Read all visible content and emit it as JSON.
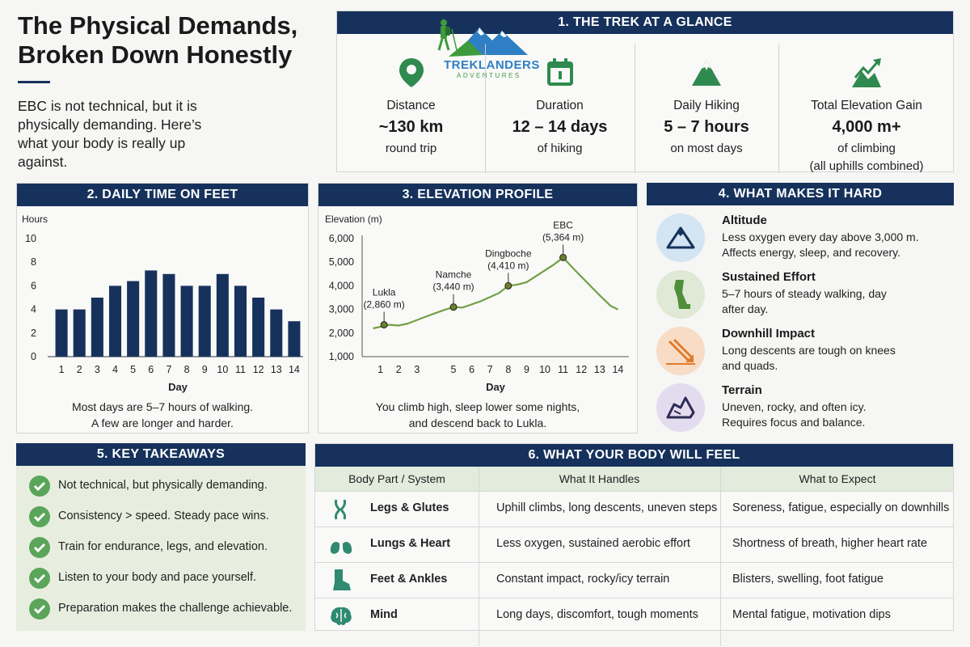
{
  "header": {
    "title_line1": "The Physical Demands,",
    "title_line2": "Broken Down Honestly",
    "intro": "EBC is not technical, but it is physically demanding. Here’s what your body is really up against."
  },
  "logo": {
    "name": "TREKLANDERS",
    "tagline": "ADVENTURES",
    "icon": "hiker-mountain-logo"
  },
  "glance": {
    "title": "1. THE TREK AT A GLANCE",
    "items": [
      {
        "icon": "map-pin-icon",
        "label": "Distance",
        "value": "~130 km",
        "sub": "round trip"
      },
      {
        "icon": "calendar-icon",
        "label": "Duration",
        "value": "12 – 14 days",
        "sub": "of hiking"
      },
      {
        "icon": "mountain-icon",
        "label": "Daily Hiking",
        "value": "5 – 7 hours",
        "sub": "on most days"
      },
      {
        "icon": "elevation-arrow-icon",
        "label": "Total Elevation Gain",
        "value": "4,000 m+",
        "sub": "of climbing",
        "sub2": "(all uphills combined)"
      }
    ]
  },
  "time_on_feet": {
    "title": "2. DAILY TIME ON FEET",
    "caption_line1": "Most days are 5–7 hours of walking.",
    "caption_line2": "A few are longer and harder."
  },
  "elevation": {
    "title": "3. ELEVATION PROFILE",
    "caption_line1": "You climb high, sleep lower some nights,",
    "caption_line2": "and descend back to Lukla."
  },
  "chart_data": [
    {
      "type": "bar",
      "ylabel": "Hours",
      "xlabel": "Day",
      "ylim": [
        0,
        10
      ],
      "yticks": [
        0,
        2,
        4,
        6,
        8,
        10
      ],
      "categories": [
        "1",
        "2",
        "3",
        "4",
        "5",
        "6",
        "7",
        "8",
        "9",
        "10",
        "11",
        "12",
        "13",
        "14"
      ],
      "values": [
        4,
        4,
        5,
        6,
        6.4,
        7.3,
        7,
        6,
        6,
        7,
        6,
        5,
        4,
        3
      ],
      "bar_color": "#16325c"
    },
    {
      "type": "line",
      "ylabel": "Elevation (m)",
      "xlabel": "Day",
      "ylim": [
        1000,
        6000
      ],
      "yticks": [
        1000,
        2000,
        3000,
        4000,
        5000,
        6000
      ],
      "ytick_labels": [
        "1,000",
        "2,000",
        "3,000",
        "4,000",
        "5,000",
        "6,000"
      ],
      "xticks": [
        1,
        2,
        3,
        5,
        6,
        7,
        8,
        9,
        10,
        11,
        12,
        13,
        14
      ],
      "xtick_labels": [
        "1",
        "2",
        "3",
        "5",
        "6",
        "7",
        "8",
        "9",
        "10",
        "11",
        "12",
        "13",
        "14"
      ],
      "x": [
        0.6,
        1.5,
        2,
        2.5,
        3.5,
        4.5,
        5,
        5.5,
        6.5,
        7.5,
        8,
        8.5,
        9,
        9.5,
        10.5,
        11,
        11.6,
        12.3,
        13,
        13.6,
        14
      ],
      "y": [
        2200,
        2350,
        2320,
        2400,
        2700,
        2980,
        3100,
        3080,
        3350,
        3700,
        4000,
        4050,
        4150,
        4400,
        4900,
        5200,
        4700,
        4150,
        3600,
        3150,
        3000
      ],
      "line_color": "#6fa043",
      "annotations": [
        {
          "name": "Lukla",
          "elev": "(2,860 m)",
          "x": 1.2,
          "y": 2350
        },
        {
          "name": "Namche",
          "elev": "(3,440 m)",
          "x": 5,
          "y": 3100
        },
        {
          "name": "Dingboche",
          "elev": "(4,410 m)",
          "x": 8,
          "y": 4000
        },
        {
          "name": "EBC",
          "elev": "(5,364 m)",
          "x": 11,
          "y": 5200
        }
      ]
    }
  ],
  "hard": {
    "title": "4. WHAT MAKES IT HARD",
    "items": [
      {
        "icon": "altitude-mountain-icon",
        "title": "Altitude",
        "line1": "Less oxygen every day above 3,000 m.",
        "line2": "Affects energy, sleep, and recovery.",
        "color": "#d3e4f2",
        "icon_color": "#16325c"
      },
      {
        "icon": "leg-icon",
        "title": "Sustained Effort",
        "line1": "5–7 hours of steady walking, day",
        "line2": "after day.",
        "color": "#dfe9d6",
        "icon_color": "#4f8f3a"
      },
      {
        "icon": "downhill-icon",
        "title": "Downhill Impact",
        "line1": "Long descents are tough on knees",
        "line2": "and quads.",
        "color": "#f8dcc6",
        "icon_color": "#e07b2c"
      },
      {
        "icon": "rocky-terrain-icon",
        "title": "Terrain",
        "line1": "Uneven, rocky, and often icy.",
        "line2": "Requires focus and balance.",
        "color": "#e3dcee",
        "icon_color": "#2b2b55"
      }
    ]
  },
  "takeaways": {
    "title": "5. KEY TAKEAWAYS",
    "items": [
      "Not technical, but physically demanding.",
      "Consistency > speed. Steady pace wins.",
      "Train for endurance, legs, and elevation.",
      "Listen to your body and pace yourself.",
      "Preparation makes the challenge achievable."
    ]
  },
  "body": {
    "title": "6. WHAT YOUR BODY WILL FEEL",
    "headers": [
      "Body Part / System",
      "What It Handles",
      "What to Expect"
    ],
    "rows": [
      {
        "icon": "muscle-icon",
        "part": "Legs & Glutes",
        "handles": "Uphill climbs, long descents, uneven steps",
        "expect": "Soreness, fatigue, especially on downhills"
      },
      {
        "icon": "lungs-icon",
        "part": "Lungs & Heart",
        "handles": "Less oxygen, sustained aerobic effort",
        "expect": "Shortness of breath, higher heart rate"
      },
      {
        "icon": "boot-icon",
        "part": "Feet & Ankles",
        "handles": "Constant impact, rocky/icy terrain",
        "expect": "Blisters, swelling, foot fatigue"
      },
      {
        "icon": "brain-icon",
        "part": "Mind",
        "handles": "Long days, discomfort, tough moments",
        "expect": "Mental fatigue, motivation dips"
      }
    ]
  }
}
